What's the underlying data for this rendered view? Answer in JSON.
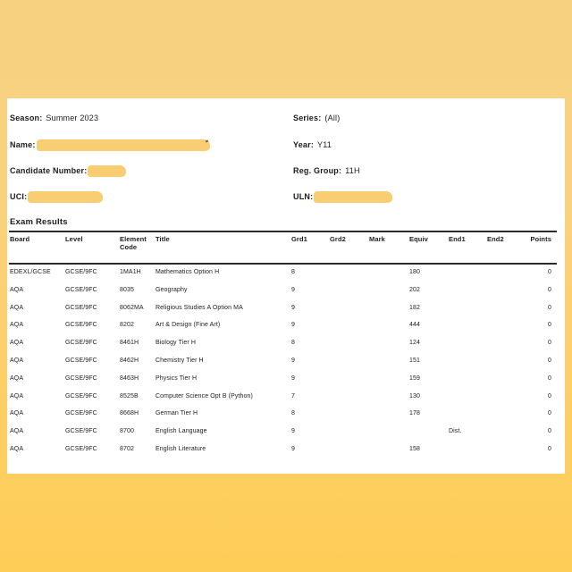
{
  "page": {
    "bg_top_color": "#f8d180",
    "bg_bottom_color": "#fecd58",
    "paper_color": "#ffffff",
    "ink_color": "#1c1c1c",
    "redaction_color": "#f9cd72"
  },
  "student_info": {
    "left": [
      {
        "label": "Season:",
        "value": "Summer 2023",
        "redacted": false
      },
      {
        "label": "Name:",
        "value": "",
        "redacted": true,
        "redaction_width": 194
      },
      {
        "label": "Candidate Number:",
        "value": "",
        "redacted": true,
        "redaction_width": 43
      },
      {
        "label": "UCI:",
        "value": "",
        "redacted": true,
        "redaction_width": 84
      }
    ],
    "right": [
      {
        "label": "Series:",
        "value": "(All)",
        "redacted": false
      },
      {
        "label": "Year:",
        "value": "Y11",
        "redacted": false
      },
      {
        "label": "Reg. Group:",
        "value": "11H",
        "redacted": false
      },
      {
        "label": "ULN:",
        "value": "",
        "redacted": true,
        "redaction_width": 88
      }
    ]
  },
  "exam_results": {
    "section_title": "Exam Results",
    "columns": [
      "Board",
      "Level",
      "Element Code",
      "Title",
      "Grd1",
      "Grd2",
      "Mark",
      "Equiv",
      "End1",
      "End2",
      "Points"
    ],
    "rows": [
      [
        "EDEXL/GCSE",
        "GCSE/9FC",
        "1MA1H",
        "Mathematics Option H",
        "8",
        "",
        "",
        "180",
        "",
        "",
        "0"
      ],
      [
        "AQA",
        "GCSE/9FC",
        "8035",
        "Geography",
        "9",
        "",
        "",
        "202",
        "",
        "",
        "0"
      ],
      [
        "AQA",
        "GCSE/9FC",
        "8062MA",
        "Religious Studies A Option MA",
        "9",
        "",
        "",
        "182",
        "",
        "",
        "0"
      ],
      [
        "AQA",
        "GCSE/9FC",
        "8202",
        "Art & Design (Fine Art)",
        "9",
        "",
        "",
        "444",
        "",
        "",
        "0"
      ],
      [
        "AQA",
        "GCSE/9FC",
        "8461H",
        "Biology Tier H",
        "8",
        "",
        "",
        "124",
        "",
        "",
        "0"
      ],
      [
        "AQA",
        "GCSE/9FC",
        "8462H",
        "Chemistry Tier H",
        "9",
        "",
        "",
        "151",
        "",
        "",
        "0"
      ],
      [
        "AQA",
        "GCSE/9FC",
        "8463H",
        "Physics Tier H",
        "9",
        "",
        "",
        "159",
        "",
        "",
        "0"
      ],
      [
        "AQA",
        "GCSE/9FC",
        "8525B",
        "Computer Science Opt B (Python)",
        "7",
        "",
        "",
        "130",
        "",
        "",
        "0"
      ],
      [
        "AQA",
        "GCSE/9FC",
        "8668H",
        "German Tier H",
        "8",
        "",
        "",
        "178",
        "",
        "",
        "0"
      ],
      [
        "AQA",
        "GCSE/9FC",
        "8700",
        "English Language",
        "9",
        "",
        "",
        "",
        "Dist.",
        "",
        "0"
      ],
      [
        "AQA",
        "GCSE/9FC",
        "8702",
        "English Literature",
        "9",
        "",
        "",
        "158",
        "",
        "",
        "0"
      ]
    ]
  }
}
